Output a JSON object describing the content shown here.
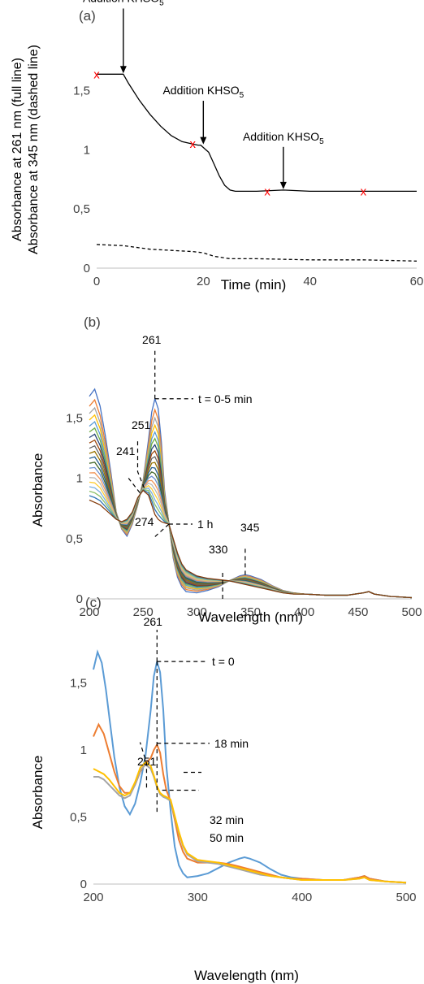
{
  "chart_data": [
    {
      "type": "line",
      "panel_label": "(a)",
      "xlabel": "Time (min)",
      "ylabel_full": "Absorbance at 261 nm (full line)",
      "ylabel_dashed": "Absorbance at 345 nm (dashed line)",
      "xlim": [
        0,
        60
      ],
      "ylim": [
        0,
        1.8
      ],
      "x_ticks": [
        "0",
        "20",
        "40",
        "60"
      ],
      "y_ticks": [
        "0",
        "0,5",
        "1",
        "1,5"
      ],
      "grid": false,
      "series": [
        {
          "style": "solid",
          "color": "#000000",
          "x": [
            0,
            4,
            5,
            6,
            8,
            10,
            12,
            14,
            16,
            18,
            19,
            19.5,
            20,
            21,
            22,
            23,
            24,
            25,
            26,
            28,
            30,
            35,
            40,
            45,
            50,
            55,
            60
          ],
          "y": [
            1.64,
            1.64,
            1.64,
            1.56,
            1.42,
            1.3,
            1.2,
            1.12,
            1.07,
            1.05,
            1.04,
            1.04,
            1.02,
            0.98,
            0.88,
            0.78,
            0.7,
            0.66,
            0.65,
            0.65,
            0.65,
            0.66,
            0.65,
            0.65,
            0.65,
            0.65,
            0.65
          ]
        },
        {
          "style": "dashed",
          "color": "#000000",
          "x": [
            0,
            5,
            10,
            18,
            20,
            22,
            25,
            30,
            40,
            50,
            60
          ],
          "y": [
            0.2,
            0.19,
            0.16,
            0.14,
            0.13,
            0.1,
            0.08,
            0.08,
            0.07,
            0.07,
            0.06
          ]
        }
      ],
      "markers": {
        "symbol": "x",
        "color": "#ff0000",
        "x": [
          0,
          18,
          32,
          50
        ],
        "y": [
          1.64,
          1.05,
          0.65,
          0.65
        ]
      },
      "annotations": [
        {
          "text": "Addition KHSO",
          "sub": "5",
          "x": 5,
          "y": 1.64,
          "label_y": 2.25,
          "label_x": 5
        },
        {
          "text": "Addition KHSO",
          "sub": "5",
          "x": 20,
          "y": 1.04,
          "label_y": 1.47,
          "label_x": 20
        },
        {
          "text": "Addition KHSO",
          "sub": "5",
          "x": 35,
          "y": 0.66,
          "label_y": 1.08,
          "label_x": 35
        }
      ]
    },
    {
      "type": "line",
      "panel_label": "(b)",
      "xlabel": "Wavelength (nm)",
      "ylabel": "Absorbance",
      "xlim": [
        200,
        500
      ],
      "ylim": [
        0,
        1.8
      ],
      "x_ticks": [
        "200",
        "250",
        "300",
        "350",
        "400",
        "450",
        "500"
      ],
      "y_ticks": [
        "0",
        "0,5",
        "1",
        "1,5"
      ],
      "grid": false,
      "series_colors": [
        "#4472c4",
        "#ed7d31",
        "#a5a5a5",
        "#ffc000",
        "#5b9bd5",
        "#70ad47",
        "#264478",
        "#9e480e",
        "#636363",
        "#997300",
        "#255e91",
        "#43682b",
        "#698ed0",
        "#f1975a",
        "#b7b7b7",
        "#ffcd33",
        "#7cafdd",
        "#8cc168",
        "#2e75b6",
        "#843c0c"
      ],
      "series_count": 20,
      "series_spectra": {
        "x": [
          200,
          205,
          210,
          215,
          220,
          225,
          230,
          235,
          240,
          245,
          250,
          255,
          258,
          261,
          264,
          267,
          270,
          274,
          278,
          282,
          286,
          290,
          300,
          310,
          320,
          330,
          340,
          345,
          350,
          360,
          370,
          380,
          390,
          400,
          420,
          440,
          455,
          460,
          465,
          480,
          500
        ],
        "initial": [
          1.68,
          1.74,
          1.6,
          1.35,
          1.05,
          0.72,
          0.58,
          0.52,
          0.62,
          0.78,
          0.98,
          1.32,
          1.55,
          1.66,
          1.58,
          1.3,
          0.9,
          0.63,
          0.34,
          0.18,
          0.1,
          0.06,
          0.05,
          0.07,
          0.1,
          0.15,
          0.19,
          0.2,
          0.19,
          0.16,
          0.11,
          0.07,
          0.05,
          0.04,
          0.03,
          0.03,
          0.05,
          0.06,
          0.04,
          0.02,
          0.01
        ],
        "final": [
          0.82,
          0.8,
          0.78,
          0.74,
          0.7,
          0.66,
          0.64,
          0.66,
          0.72,
          0.84,
          0.9,
          0.86,
          0.78,
          0.7,
          0.66,
          0.64,
          0.63,
          0.62,
          0.5,
          0.38,
          0.29,
          0.24,
          0.19,
          0.17,
          0.16,
          0.15,
          0.13,
          0.12,
          0.11,
          0.09,
          0.07,
          0.05,
          0.04,
          0.04,
          0.03,
          0.03,
          0.05,
          0.06,
          0.04,
          0.02,
          0.01
        ]
      },
      "annotations": [
        {
          "text": "261",
          "x": 261,
          "y": 1.66
        },
        {
          "text": "t = 0-5 min"
        },
        {
          "text": "251",
          "x": 251,
          "y": 0.92
        },
        {
          "text": "241",
          "x": 241,
          "y": 0.88
        },
        {
          "text": "1 h"
        },
        {
          "text": "274",
          "x": 274,
          "y": 0.62
        },
        {
          "text": "330",
          "x": 324,
          "y": 0.1
        },
        {
          "text": "345",
          "x": 345,
          "y": 0.2
        }
      ]
    },
    {
      "type": "line",
      "panel_label": "(c)",
      "xlabel": "Wavelength (nm)",
      "ylabel": "Absorbance",
      "xlim": [
        200,
        500
      ],
      "ylim": [
        0,
        1.8
      ],
      "x_ticks": [
        "200",
        "300",
        "400",
        "500"
      ],
      "y_ticks": [
        "0",
        "0,5",
        "1",
        "1,5"
      ],
      "grid": false,
      "series": [
        {
          "color": "#5b9bd5",
          "x": [
            200,
            204,
            208,
            212,
            216,
            220,
            225,
            230,
            235,
            240,
            245,
            250,
            255,
            258,
            261,
            264,
            267,
            270,
            274,
            278,
            282,
            286,
            290,
            300,
            310,
            320,
            330,
            340,
            345,
            350,
            360,
            370,
            380,
            390,
            400,
            420,
            440,
            455,
            460,
            465,
            480,
            500
          ],
          "y": [
            1.6,
            1.73,
            1.65,
            1.45,
            1.2,
            0.95,
            0.72,
            0.58,
            0.52,
            0.6,
            0.76,
            0.96,
            1.3,
            1.55,
            1.66,
            1.58,
            1.3,
            0.88,
            0.55,
            0.28,
            0.14,
            0.08,
            0.05,
            0.06,
            0.08,
            0.12,
            0.16,
            0.19,
            0.2,
            0.19,
            0.16,
            0.11,
            0.07,
            0.05,
            0.04,
            0.03,
            0.03,
            0.05,
            0.06,
            0.04,
            0.02,
            0.01
          ]
        },
        {
          "color": "#ed7d31",
          "x": [
            200,
            205,
            210,
            215,
            220,
            225,
            230,
            235,
            240,
            245,
            250,
            255,
            258,
            261,
            264,
            267,
            270,
            274,
            278,
            282,
            286,
            290,
            300,
            310,
            320,
            330,
            340,
            350,
            360,
            370,
            380,
            390,
            400,
            420,
            440,
            455,
            460,
            465,
            480,
            500
          ],
          "y": [
            1.1,
            1.19,
            1.12,
            0.98,
            0.84,
            0.73,
            0.68,
            0.68,
            0.74,
            0.84,
            0.9,
            0.94,
            1.0,
            1.04,
            0.98,
            0.82,
            0.7,
            0.62,
            0.48,
            0.33,
            0.24,
            0.19,
            0.16,
            0.16,
            0.16,
            0.15,
            0.13,
            0.11,
            0.09,
            0.07,
            0.05,
            0.04,
            0.04,
            0.03,
            0.03,
            0.05,
            0.06,
            0.04,
            0.02,
            0.01
          ]
        },
        {
          "color": "#a5a5a5",
          "x": [
            200,
            205,
            210,
            215,
            220,
            225,
            230,
            235,
            240,
            245,
            250,
            255,
            258,
            261,
            264,
            267,
            270,
            274,
            278,
            282,
            286,
            290,
            300,
            310,
            320,
            330,
            340,
            350,
            360,
            370,
            380,
            390,
            400,
            420,
            440,
            455,
            460,
            465,
            480,
            500
          ],
          "y": [
            0.8,
            0.8,
            0.78,
            0.74,
            0.7,
            0.66,
            0.64,
            0.66,
            0.74,
            0.85,
            0.89,
            0.86,
            0.8,
            0.72,
            0.67,
            0.65,
            0.64,
            0.62,
            0.5,
            0.38,
            0.28,
            0.22,
            0.17,
            0.16,
            0.15,
            0.13,
            0.11,
            0.09,
            0.07,
            0.06,
            0.05,
            0.04,
            0.03,
            0.03,
            0.03,
            0.04,
            0.05,
            0.03,
            0.02,
            0.01
          ]
        },
        {
          "color": "#ffc000",
          "x": [
            200,
            205,
            210,
            215,
            220,
            225,
            230,
            235,
            240,
            245,
            250,
            255,
            258,
            261,
            264,
            267,
            270,
            274,
            278,
            282,
            286,
            290,
            300,
            310,
            320,
            330,
            340,
            350,
            360,
            370,
            380,
            390,
            400,
            420,
            440,
            455,
            460,
            465,
            480,
            500
          ],
          "y": [
            0.86,
            0.84,
            0.82,
            0.78,
            0.73,
            0.68,
            0.66,
            0.68,
            0.76,
            0.87,
            0.91,
            0.88,
            0.81,
            0.73,
            0.68,
            0.66,
            0.65,
            0.63,
            0.51,
            0.39,
            0.29,
            0.23,
            0.18,
            0.17,
            0.16,
            0.14,
            0.12,
            0.1,
            0.08,
            0.06,
            0.05,
            0.04,
            0.03,
            0.03,
            0.03,
            0.04,
            0.05,
            0.03,
            0.02,
            0.01
          ]
        }
      ],
      "annotations": [
        {
          "text": "261",
          "x": 261,
          "y": 1.66
        },
        {
          "text": "t = 0"
        },
        {
          "text": "251",
          "x": 251,
          "y": 0.9
        },
        {
          "text": "18 min",
          "x": 261,
          "y": 1.04
        },
        {
          "text": "32 min",
          "x": 266,
          "y": 0.7
        },
        {
          "text": "50 min"
        }
      ]
    }
  ]
}
